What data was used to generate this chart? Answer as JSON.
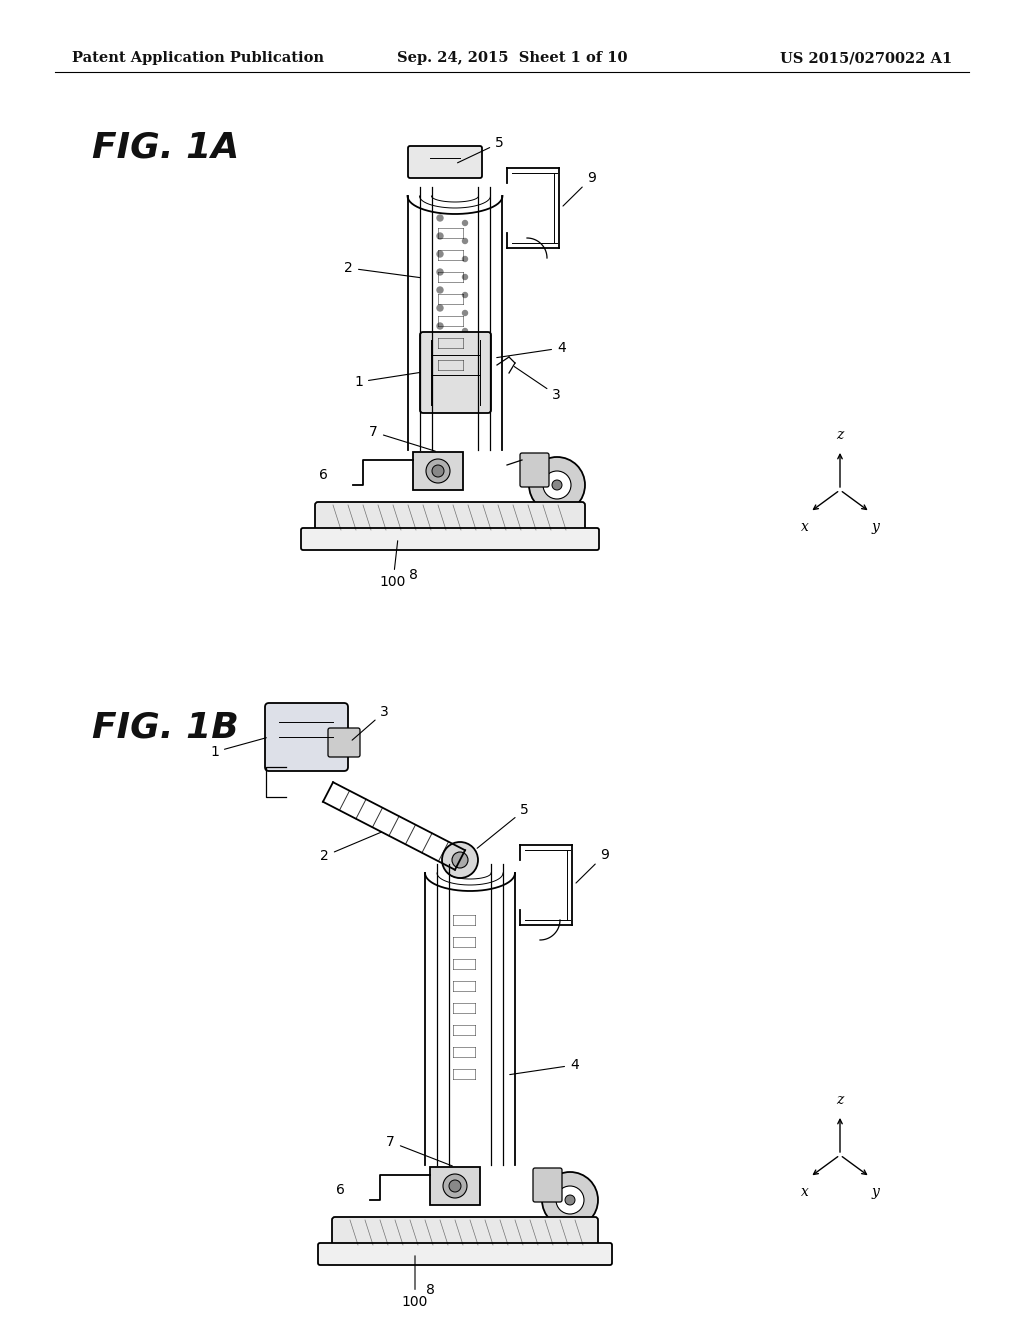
{
  "background_color": "#ffffff",
  "page_bg": "#f5f5f0",
  "header_left": "Patent Application Publication",
  "header_center": "Sep. 24, 2015  Sheet 1 of 10",
  "header_right": "US 2015/0270022 A1",
  "fig1a_label": "FIG. 1A",
  "fig1b_label": "FIG. 1B",
  "header_fontsize": 10.5,
  "fig_label_fontsize": 26,
  "anno_fontsize": 10,
  "lw": 1.0
}
